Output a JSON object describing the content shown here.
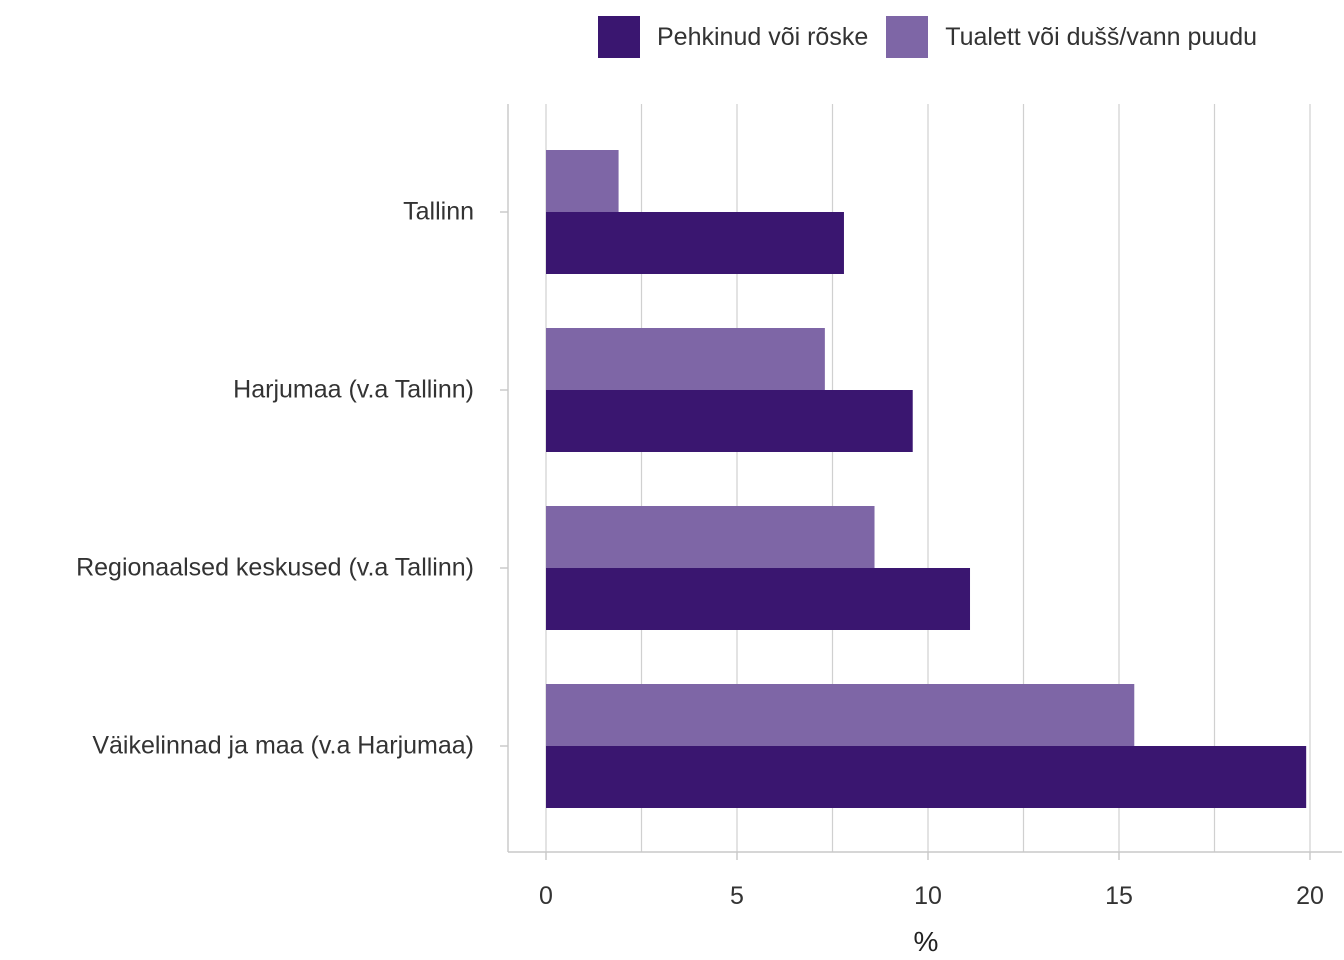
{
  "chart_data": {
    "type": "bar",
    "orientation": "horizontal",
    "categories": [
      "Tallinn",
      "Harjumaa (v.a Tallinn)",
      "Regionaalsed keskused (v.a Tallinn)",
      "Väikelinnad ja maa (v.a Harjumaa)"
    ],
    "series": [
      {
        "name": "Pehkinud või rõske",
        "color": "#3a1670",
        "values": [
          7.8,
          9.6,
          11.1,
          19.9
        ]
      },
      {
        "name": "Tualett või dušš/vann puudu",
        "color": "#7e66a6",
        "values": [
          1.9,
          7.3,
          8.6,
          15.4
        ]
      }
    ],
    "xlabel": "%",
    "ylabel": "",
    "xlim": [
      -1,
      20.9
    ],
    "xticks": [
      "0",
      "5",
      "10",
      "15",
      "20"
    ],
    "grid": true,
    "legend_position": "top"
  }
}
